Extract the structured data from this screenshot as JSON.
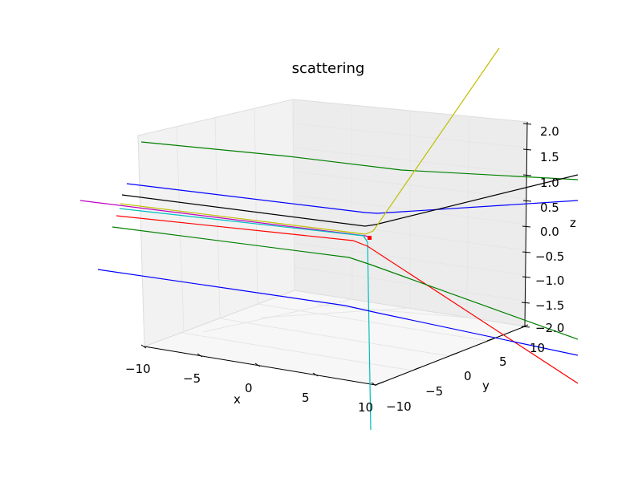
{
  "chart_data": {
    "type": "line",
    "projection": "3d",
    "title": "scattering",
    "xlabel": "x",
    "ylabel": "y",
    "zlabel": "z",
    "xlim": [
      -10,
      10
    ],
    "ylim": [
      -10,
      10
    ],
    "zlim": [
      -2,
      2
    ],
    "x_ticks": [
      "−10",
      "−5",
      "0",
      "5",
      "10"
    ],
    "y_ticks": [
      "−10",
      "−5",
      "0",
      "5",
      "10"
    ],
    "z_ticks": [
      "−2.0",
      "−1.5",
      "−1.0",
      "−0.5",
      "0.0",
      "0.5",
      "1.0",
      "1.5",
      "2.0"
    ],
    "grid": true,
    "scatter_center": {
      "x": 0,
      "y": 0,
      "z": 0,
      "color": "#ff0000"
    },
    "series": [
      {
        "color": "#008000",
        "values": [
          [
            -12,
            8,
            1.6
          ],
          [
            0,
            8,
            1.25
          ],
          [
            12,
            8,
            1.0
          ]
        ]
      },
      {
        "color": "#0000ff",
        "values": [
          [
            -12,
            4,
            0.6
          ],
          [
            0,
            4,
            0.5
          ],
          [
            12,
            4,
            1.1
          ]
        ]
      },
      {
        "color": "#000000",
        "values": [
          [
            -12,
            2,
            0.3
          ],
          [
            0,
            2,
            0.05
          ],
          [
            12,
            2,
            2.5
          ]
        ]
      },
      {
        "color": "#bfbf00",
        "values": [
          [
            -12,
            1,
            0.1
          ],
          [
            0,
            1,
            0.0
          ],
          [
            12,
            1,
            8.0
          ]
        ]
      },
      {
        "color": "#bf00bf",
        "values": [
          [
            -14,
            1,
            0.1
          ],
          [
            0,
            0.5,
            0.0
          ],
          [
            2,
            0.5,
            0.0
          ]
        ]
      },
      {
        "color": "#00bfbf",
        "values": [
          [
            -12,
            0.5,
            0.02
          ],
          [
            0,
            0,
            -0.1
          ],
          [
            0,
            -12,
            -8
          ]
        ]
      },
      {
        "color": "#ff0000",
        "values": [
          [
            -12,
            0,
            -0.2
          ],
          [
            0,
            0,
            -0.3
          ],
          [
            12,
            -10,
            -8
          ]
        ]
      },
      {
        "color": "#008000",
        "values": [
          [
            -12,
            -2,
            -0.6
          ],
          [
            0,
            -2,
            -0.9
          ],
          [
            12,
            -6,
            -4
          ]
        ]
      },
      {
        "color": "#0000ff",
        "values": [
          [
            -12,
            -6,
            -1.7
          ],
          [
            0,
            -6,
            -1.85
          ],
          [
            12,
            -8,
            -3
          ]
        ]
      }
    ]
  }
}
